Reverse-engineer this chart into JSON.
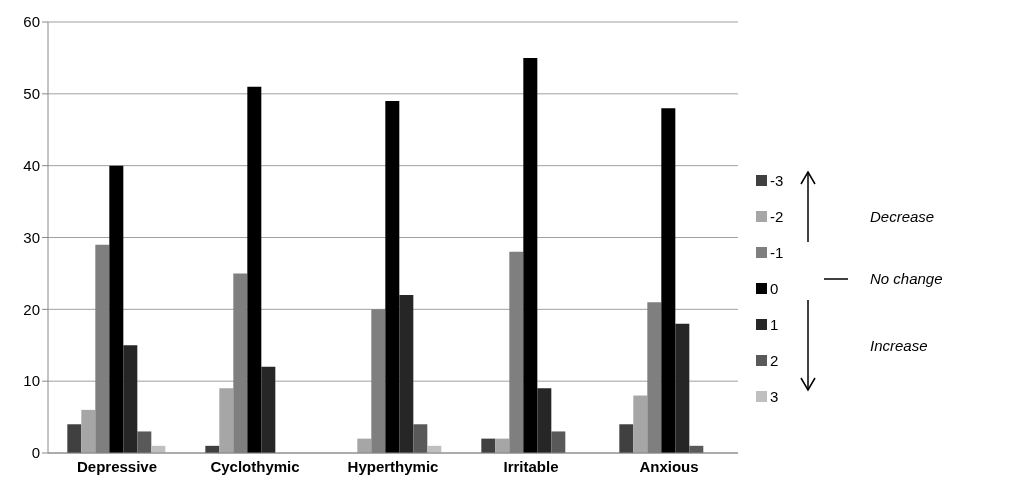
{
  "chart_data": {
    "type": "bar",
    "categories": [
      "Depressive",
      "Cyclothymic",
      "Hyperthymic",
      "Irritable",
      "Anxious"
    ],
    "series": [
      {
        "name": "-3",
        "color": "#404040",
        "values": [
          4,
          1,
          0,
          2,
          4
        ]
      },
      {
        "name": "-2",
        "color": "#a6a6a6",
        "values": [
          6,
          9,
          2,
          2,
          8
        ]
      },
      {
        "name": "-1",
        "color": "#7f7f7f",
        "values": [
          29,
          25,
          20,
          28,
          21
        ]
      },
      {
        "name": "0",
        "color": "#000000",
        "values": [
          40,
          51,
          49,
          55,
          48
        ]
      },
      {
        "name": "1",
        "color": "#262626",
        "values": [
          15,
          12,
          22,
          9,
          18
        ]
      },
      {
        "name": "2",
        "color": "#595959",
        "values": [
          3,
          0,
          4,
          3,
          1
        ]
      },
      {
        "name": "3",
        "color": "#bfbfbf",
        "values": [
          1,
          0,
          1,
          0,
          0
        ]
      }
    ],
    "ylim": [
      0,
      60
    ],
    "yticks": [
      0,
      10,
      20,
      30,
      40,
      50,
      60
    ],
    "grid": "y",
    "legend": "right",
    "annotations": [
      "Decrease",
      "No change",
      "Increase"
    ]
  }
}
